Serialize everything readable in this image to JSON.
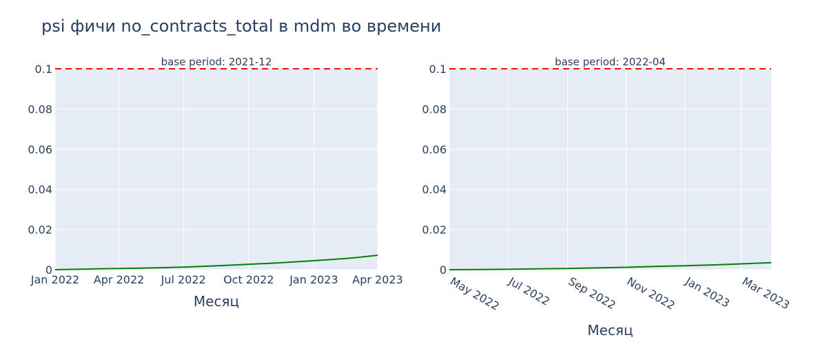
{
  "title": "psi фичи no_contracts_total в mdm во времени",
  "colors": {
    "plot_bg": "#e5ecf6",
    "grid": "#ffffff",
    "line": "#008000",
    "threshold": "#ff0000",
    "text": "#2a3f5f"
  },
  "chart_data": [
    {
      "type": "line",
      "subtitle": "base period: 2021-12",
      "xlabel": "Месяц",
      "ylabel": "",
      "x_range": [
        "2022-01-01",
        "2023-04-01"
      ],
      "ylim": [
        0,
        0.1
      ],
      "x_ticks": [
        {
          "date": "2022-01-01",
          "label": "Jan 2022"
        },
        {
          "date": "2022-04-01",
          "label": "Apr 2022"
        },
        {
          "date": "2022-07-01",
          "label": "Jul 2022"
        },
        {
          "date": "2022-10-01",
          "label": "Oct 2022"
        },
        {
          "date": "2023-01-01",
          "label": "Jan 2023"
        },
        {
          "date": "2023-04-01",
          "label": "Apr 2023"
        }
      ],
      "x_tick_rotation": 0,
      "y_ticks": [
        {
          "value": 0,
          "label": "0"
        },
        {
          "value": 0.02,
          "label": "0.02"
        },
        {
          "value": 0.04,
          "label": "0.04"
        },
        {
          "value": 0.06,
          "label": "0.06"
        },
        {
          "value": 0.08,
          "label": "0.08"
        },
        {
          "value": 0.1,
          "label": "0.1"
        }
      ],
      "threshold": 0.1,
      "grid": true,
      "series": [
        {
          "x": [
            "2022-01-01",
            "2022-02-01",
            "2022-03-01",
            "2022-04-01",
            "2022-05-01",
            "2022-06-01",
            "2022-07-01",
            "2022-08-01",
            "2022-09-01",
            "2022-10-01",
            "2022-11-01",
            "2022-12-01",
            "2023-01-01",
            "2023-02-01",
            "2023-03-01",
            "2023-04-01"
          ],
          "y": [
            0.0,
            0.0002,
            0.0004,
            0.0006,
            0.0008,
            0.001,
            0.0013,
            0.0017,
            0.0022,
            0.0027,
            0.0032,
            0.0038,
            0.0045,
            0.0052,
            0.006,
            0.0072
          ]
        }
      ]
    },
    {
      "type": "line",
      "subtitle": "base period: 2022-04",
      "xlabel": "Месяц",
      "ylabel": "",
      "x_range": [
        "2022-05-01",
        "2023-04-01"
      ],
      "ylim": [
        0,
        0.1
      ],
      "x_ticks": [
        {
          "date": "2022-05-01",
          "label": "May 2022"
        },
        {
          "date": "2022-07-01",
          "label": "Jul 2022"
        },
        {
          "date": "2022-09-01",
          "label": "Sep 2022"
        },
        {
          "date": "2022-11-01",
          "label": "Nov 2022"
        },
        {
          "date": "2023-01-01",
          "label": "Jan 2023"
        },
        {
          "date": "2023-03-01",
          "label": "Mar 2023"
        }
      ],
      "x_tick_rotation": 30,
      "y_ticks": [
        {
          "value": 0,
          "label": "0"
        },
        {
          "value": 0.02,
          "label": "0.02"
        },
        {
          "value": 0.04,
          "label": "0.04"
        },
        {
          "value": 0.06,
          "label": "0.06"
        },
        {
          "value": 0.08,
          "label": "0.08"
        },
        {
          "value": 0.1,
          "label": "0.1"
        }
      ],
      "threshold": 0.1,
      "grid": true,
      "series": [
        {
          "x": [
            "2022-05-01",
            "2022-06-01",
            "2022-07-01",
            "2022-08-01",
            "2022-09-01",
            "2022-10-01",
            "2022-11-01",
            "2022-12-01",
            "2023-01-01",
            "2023-02-01",
            "2023-03-01",
            "2023-04-01"
          ],
          "y": [
            0.0,
            0.0001,
            0.0002,
            0.0004,
            0.0006,
            0.0009,
            0.0012,
            0.0016,
            0.002,
            0.0024,
            0.0029,
            0.0035
          ]
        }
      ]
    }
  ]
}
